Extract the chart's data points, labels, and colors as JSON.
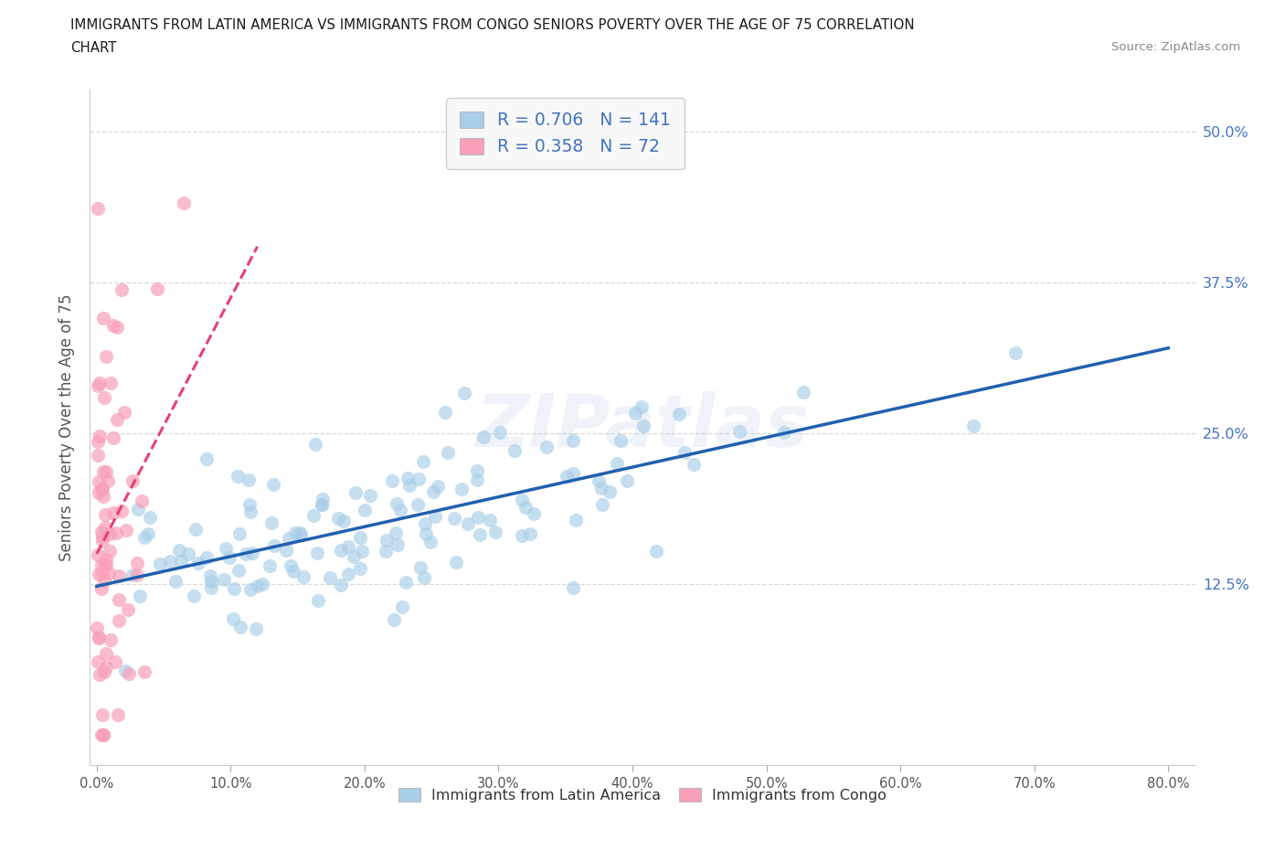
{
  "title_line1": "IMMIGRANTS FROM LATIN AMERICA VS IMMIGRANTS FROM CONGO SENIORS POVERTY OVER THE AGE OF 75 CORRELATION",
  "title_line2": "CHART",
  "source_text": "Source: ZipAtlas.com",
  "ylabel": "Seniors Poverty Over the Age of 75",
  "watermark": "ZIPatlas",
  "series": [
    {
      "name": "Immigrants from Latin America",
      "R": 0.706,
      "N": 141,
      "color_scatter": "#A8CEE8",
      "color_line": "#2060B0",
      "seed": 42
    },
    {
      "name": "Immigrants from Congo",
      "R": 0.358,
      "N": 72,
      "color_scatter": "#F8A0B8",
      "color_line": "#E84070",
      "seed": 77
    }
  ],
  "xlim": [
    -0.005,
    0.82
  ],
  "ylim": [
    -0.025,
    0.535
  ],
  "xticks": [
    0.0,
    0.1,
    0.2,
    0.3,
    0.4,
    0.5,
    0.6,
    0.7,
    0.8
  ],
  "xticklabels": [
    "0.0%",
    "10.0%",
    "20.0%",
    "30.0%",
    "40.0%",
    "50.0%",
    "60.0%",
    "70.0%",
    "80.0%"
  ],
  "yticks_right": [
    0.125,
    0.25,
    0.375,
    0.5
  ],
  "yticklabels_right": [
    "12.5%",
    "25.0%",
    "37.5%",
    "50.0%"
  ],
  "grid_color": "#D8D8D8",
  "background_color": "#FFFFFF",
  "title_color": "#1A1A1A",
  "tick_label_color": "#555555",
  "right_tick_color": "#4472C4",
  "legend_text_color": "#4472C4"
}
